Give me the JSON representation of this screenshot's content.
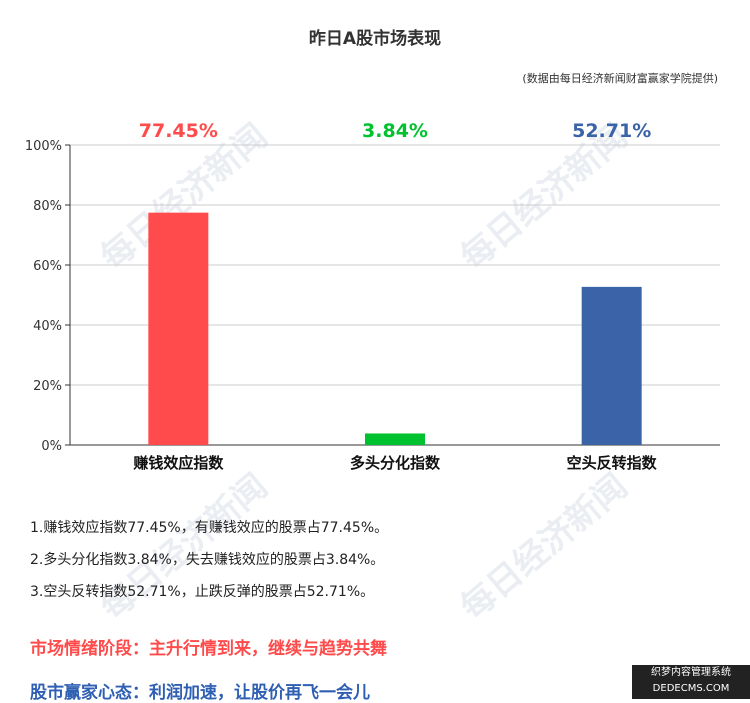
{
  "header": {
    "title": "昨日A股市场表现",
    "source": "(数据由每日经济新闻财富赢家学院提供)"
  },
  "watermark": {
    "text": "每日经济新闻"
  },
  "chart_data": {
    "type": "bar",
    "categories": [
      "赚钱效应指数",
      "多头分化指数",
      "空头反转指数"
    ],
    "values": [
      77.45,
      3.84,
      52.71
    ],
    "value_labels": [
      "77.45%",
      "3.84%",
      "52.71%"
    ],
    "colors": [
      "#ff4b4b",
      "#00c12e",
      "#3a63a8"
    ],
    "ylim": [
      0,
      100
    ],
    "yticks": [
      "0%",
      "20%",
      "40%",
      "60%",
      "80%",
      "100%"
    ],
    "grid": true,
    "title": "昨日A股市场表现",
    "xlabel": "",
    "ylabel": ""
  },
  "notes": [
    "1.赚钱效应指数77.45%，有赚钱效应的股票占77.45%。",
    "2.多头分化指数3.84%，失去赚钱效应的股票占3.84%。",
    "3.空头反转指数52.71%，止跌反弹的股票占52.71%。"
  ],
  "summary": {
    "stage": "市场情绪阶段：主升行情到来，继续与趋势共舞",
    "mood": "股市赢家心态：利润加速，让股价再飞一会儿"
  },
  "corner_badge": {
    "line1": "织梦内容管理系统",
    "line2": "DEDECMS.COM"
  }
}
